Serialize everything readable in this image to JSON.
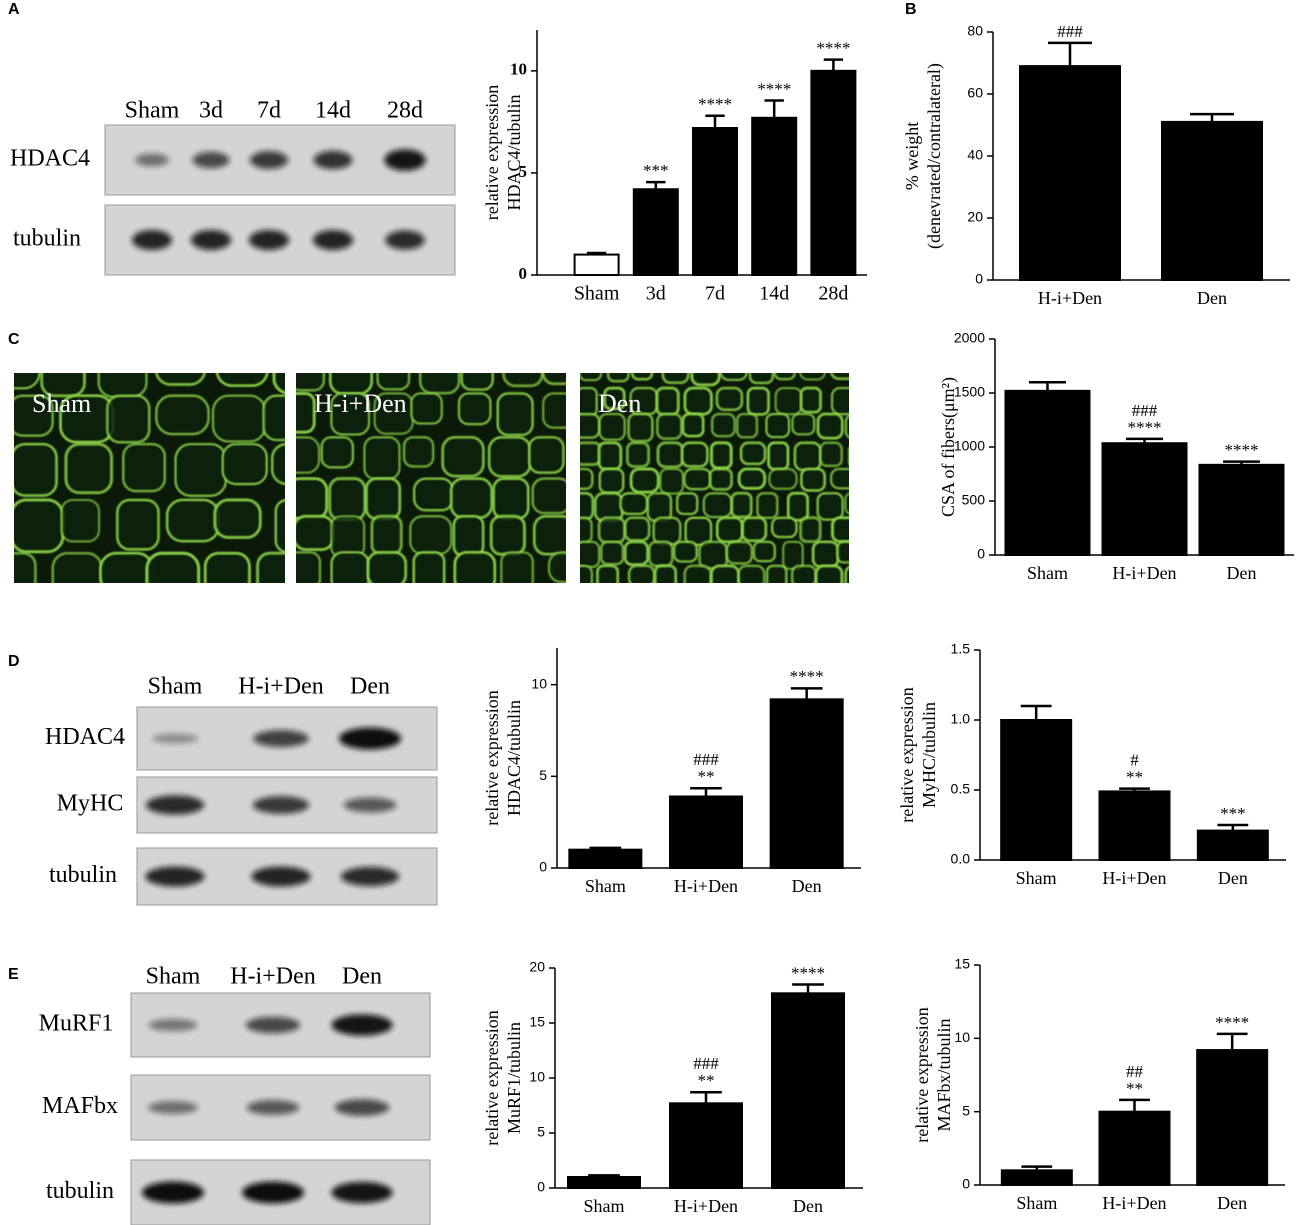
{
  "panel_labels": [
    "A",
    "B",
    "C",
    "D",
    "E"
  ],
  "blots": [
    {
      "lanes": [
        "Sham",
        "3d",
        "7d",
        "14d",
        "28d"
      ],
      "rows": [
        "HDAC4",
        "tubulin"
      ]
    },
    {
      "lanes": [
        "Sham",
        "H-i+Den",
        "Den"
      ],
      "rows": [
        "HDAC4",
        "MyHC",
        "tubulin"
      ]
    },
    {
      "lanes": [
        "Sham",
        "H-i+Den",
        "Den"
      ],
      "rows": [
        "MuRF1",
        "MAFbx",
        "tubulin"
      ]
    }
  ],
  "micrographs": [
    "Sham",
    "H-i+Den",
    "Den"
  ],
  "chart_data": [
    {
      "type": "bar",
      "y_label": [
        "relative expression",
        "HDAC4/tubulin"
      ],
      "categories": [
        "Sham",
        "3d",
        "7d",
        "14d",
        "28d"
      ],
      "values": [
        1.0,
        4.2,
        7.2,
        7.7,
        10.0
      ],
      "errors": [
        0.08,
        0.35,
        0.6,
        0.85,
        0.55
      ],
      "annotations": [
        null,
        [
          "***"
        ],
        [
          "****"
        ],
        [
          "****"
        ],
        [
          "****"
        ]
      ],
      "colors": [
        "#ffffff",
        "#000000",
        "#000000",
        "#000000",
        "#000000"
      ],
      "ylim": [
        0,
        12
      ],
      "yticks": [
        0,
        5,
        10
      ]
    },
    {
      "type": "bar",
      "y_label": [
        "% weight",
        "(denevrated/contralateral)"
      ],
      "categories": [
        "H-i+Den",
        "Den"
      ],
      "values": [
        69,
        51
      ],
      "errors": [
        7.5,
        2.5
      ],
      "annotations": [
        [
          "###"
        ],
        null
      ],
      "colors": [
        "#000000",
        "#000000"
      ],
      "ylim": [
        0,
        80
      ],
      "yticks": [
        0,
        20,
        40,
        60,
        80
      ]
    },
    {
      "type": "bar",
      "y_label": [
        "CSA of fibers(μm²)"
      ],
      "categories": [
        "Sham",
        "H-i+Den",
        "Den"
      ],
      "values": [
        1520,
        1035,
        835
      ],
      "errors": [
        80,
        40,
        30
      ],
      "annotations": [
        null,
        [
          "###",
          "****"
        ],
        [
          "****"
        ]
      ],
      "colors": [
        "#000000",
        "#000000",
        "#000000"
      ],
      "ylim": [
        0,
        2000
      ],
      "yticks": [
        0,
        500,
        1000,
        1500,
        2000
      ]
    },
    {
      "type": "bar",
      "y_label": [
        "relative expression",
        "HDAC4/tubulin"
      ],
      "categories": [
        "Sham",
        "H-i+Den",
        "Den"
      ],
      "values": [
        1.0,
        3.9,
        9.2
      ],
      "errors": [
        0.1,
        0.45,
        0.6
      ],
      "annotations": [
        null,
        [
          "###",
          "**"
        ],
        [
          "****"
        ]
      ],
      "colors": [
        "#000000",
        "#000000",
        "#000000"
      ],
      "ylim": [
        0,
        12
      ],
      "yticks": [
        0,
        5,
        10
      ]
    },
    {
      "type": "bar",
      "y_label": [
        "relative expression",
        "MyHC/tubulin"
      ],
      "categories": [
        "Sham",
        "H-i+Den",
        "Den"
      ],
      "values": [
        1.0,
        0.49,
        0.21
      ],
      "errors": [
        0.1,
        0.02,
        0.04
      ],
      "annotations": [
        null,
        [
          "#",
          "**"
        ],
        [
          "***"
        ]
      ],
      "colors": [
        "#000000",
        "#000000",
        "#000000"
      ],
      "ylim": [
        0,
        1.5
      ],
      "yticks": [
        {
          "value": 0,
          "label": "0.0"
        },
        0.5,
        {
          "value": 1,
          "label": "1.0"
        },
        1.5
      ]
    },
    {
      "type": "bar",
      "y_label": [
        "relative expression",
        "MuRF1/tubulin"
      ],
      "categories": [
        "Sham",
        "H-i+Den",
        "Den"
      ],
      "values": [
        1.0,
        7.7,
        17.7
      ],
      "errors": [
        0.15,
        1.0,
        0.8
      ],
      "annotations": [
        null,
        [
          "###",
          "**"
        ],
        [
          "****"
        ]
      ],
      "colors": [
        "#000000",
        "#000000",
        "#000000"
      ],
      "ylim": [
        0,
        20
      ],
      "yticks": [
        0,
        5,
        10,
        15,
        20
      ]
    },
    {
      "type": "bar",
      "y_label": [
        "relative expression",
        "MAFbx/tubulin"
      ],
      "categories": [
        "Sham",
        "H-i+Den",
        "Den"
      ],
      "values": [
        1.0,
        5.0,
        9.2
      ],
      "errors": [
        0.25,
        0.8,
        1.1
      ],
      "annotations": [
        null,
        [
          "##",
          "**"
        ],
        [
          "****"
        ]
      ],
      "colors": [
        "#000000",
        "#000000",
        "#000000"
      ],
      "ylim": [
        0,
        15
      ],
      "yticks": [
        0,
        5,
        10,
        15
      ]
    }
  ]
}
